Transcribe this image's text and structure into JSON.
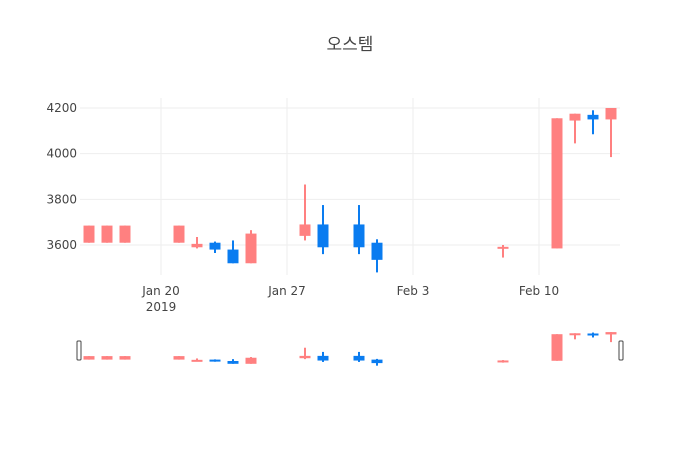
{
  "title": "오스템",
  "colors": {
    "increasing": "#ff8080",
    "decreasing": "#0a7cf0",
    "grid": "#eeeeee",
    "handle": "#444444"
  },
  "chart_data": {
    "type": "candlestick",
    "title": "오스템",
    "xlabel": "",
    "ylabel": "",
    "x_ticks": [
      {
        "label": "Jan 20",
        "sub": "2019",
        "date": "2019-01-20"
      },
      {
        "label": "Jan 27",
        "sub": "",
        "date": "2019-01-27"
      },
      {
        "label": "Feb 3",
        "sub": "",
        "date": "2019-02-03"
      },
      {
        "label": "Feb 10",
        "sub": "",
        "date": "2019-02-10"
      }
    ],
    "y_ticks": [
      3600,
      3800,
      4000,
      4200
    ],
    "ylim": [
      3430,
      4245
    ],
    "xlim": [
      "2019-01-15T12:00",
      "2019-02-14T12:00"
    ],
    "grid": true,
    "rangeslider": true,
    "candles": [
      {
        "date": "2019-01-16",
        "open": 3610,
        "high": 3685,
        "low": 3610,
        "close": 3685
      },
      {
        "date": "2019-01-17",
        "open": 3610,
        "high": 3685,
        "low": 3610,
        "close": 3685
      },
      {
        "date": "2019-01-18",
        "open": 3610,
        "high": 3685,
        "low": 3610,
        "close": 3685
      },
      {
        "date": "2019-01-21",
        "open": 3610,
        "high": 3685,
        "low": 3610,
        "close": 3685
      },
      {
        "date": "2019-01-22",
        "open": 3590,
        "high": 3635,
        "low": 3585,
        "close": 3605
      },
      {
        "date": "2019-01-23",
        "open": 3610,
        "high": 3615,
        "low": 3565,
        "close": 3580
      },
      {
        "date": "2019-01-24",
        "open": 3580,
        "high": 3620,
        "low": 3520,
        "close": 3520
      },
      {
        "date": "2019-01-25",
        "open": 3520,
        "high": 3665,
        "low": 3520,
        "close": 3650
      },
      {
        "date": "2019-01-28",
        "open": 3640,
        "high": 3865,
        "low": 3620,
        "close": 3690
      },
      {
        "date": "2019-01-29",
        "open": 3690,
        "high": 3775,
        "low": 3560,
        "close": 3590
      },
      {
        "date": "2019-01-31",
        "open": 3690,
        "high": 3775,
        "low": 3560,
        "close": 3590
      },
      {
        "date": "2019-02-01",
        "open": 3610,
        "high": 3625,
        "low": 3480,
        "close": 3535
      },
      {
        "date": "2019-02-08",
        "open": 3590,
        "high": 3600,
        "low": 3545,
        "close": 3592
      },
      {
        "date": "2019-02-11",
        "open": 3585,
        "high": 4155,
        "low": 3585,
        "close": 4155
      },
      {
        "date": "2019-02-12",
        "open": 4145,
        "high": 4175,
        "low": 4045,
        "close": 4175
      },
      {
        "date": "2019-02-13",
        "open": 4170,
        "high": 4190,
        "low": 4085,
        "close": 4150
      },
      {
        "date": "2019-02-14",
        "open": 4150,
        "high": 4200,
        "low": 3985,
        "close": 4200
      }
    ]
  }
}
